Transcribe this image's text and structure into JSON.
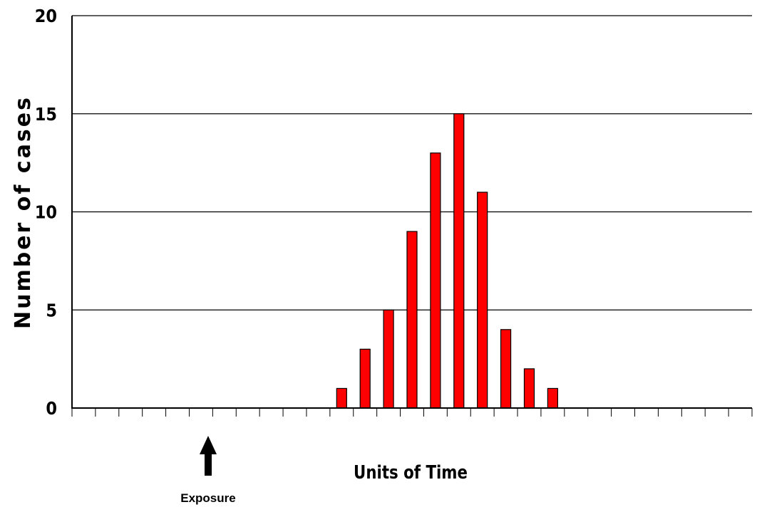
{
  "chart_data": {
    "type": "bar",
    "x": [
      11,
      12,
      13,
      14,
      15,
      16,
      17,
      18,
      19,
      20
    ],
    "values": [
      1,
      3,
      5,
      9,
      13,
      15,
      11,
      4,
      2,
      1
    ],
    "xlim": [
      0,
      29
    ],
    "ylim": [
      0,
      20
    ],
    "yticks": [
      "0",
      "5",
      "10",
      "15",
      "20"
    ],
    "xlabel": "Units of Time",
    "ylabel": "Number of cases",
    "grid": true,
    "bar_color": "#ff0000",
    "annotations": [
      {
        "text": "Exposure",
        "x": 6,
        "icon": "up-arrow-icon"
      }
    ]
  }
}
